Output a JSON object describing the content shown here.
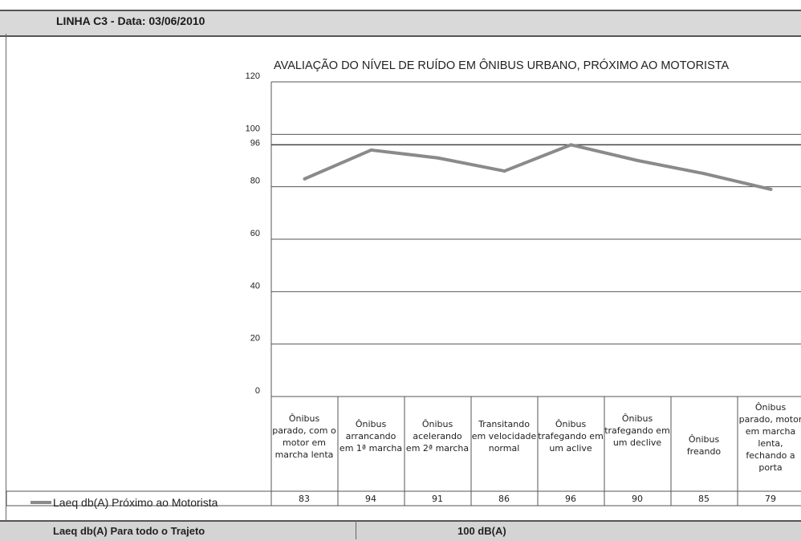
{
  "header": {
    "line": "LINHA C3",
    "date_text": " - Data: 03/06/2010"
  },
  "footer": {
    "label": "Laeq db(A)  Para todo o Trajeto",
    "value": "100 dB(A)"
  },
  "chart_data": {
    "type": "line",
    "title": "AVALIAÇÃO DO NÍVEL DE RUÍDO EM ÔNIBUS URBANO, PRÓXIMO AO MOTORISTA",
    "categories": [
      "Ônibus parado, com o motor em marcha lenta",
      "Ônibus arrancando em 1ª marcha",
      "Ônibus acelerando em 2ª marcha",
      "Transitando em velocidade normal",
      "Ônibus trafegando em um aclive",
      "Ônibus trafegando em um declive",
      "Ônibus freando",
      "Ônibus parado, motor em marcha lenta, fechando a porta"
    ],
    "series": [
      {
        "name": "Laeq db(A) Próximo ao Motorista",
        "values": [
          83,
          94,
          91,
          86,
          96,
          90,
          85,
          79
        ]
      }
    ],
    "ylim": [
      0,
      120
    ],
    "yticks": [
      0,
      20,
      40,
      60,
      80,
      100,
      120
    ],
    "reference_line": {
      "value": 96,
      "label": "96"
    },
    "grid": true,
    "legend": "bottom-left",
    "colors": {
      "line": "#8a8a8a",
      "grid": "#555555"
    }
  }
}
